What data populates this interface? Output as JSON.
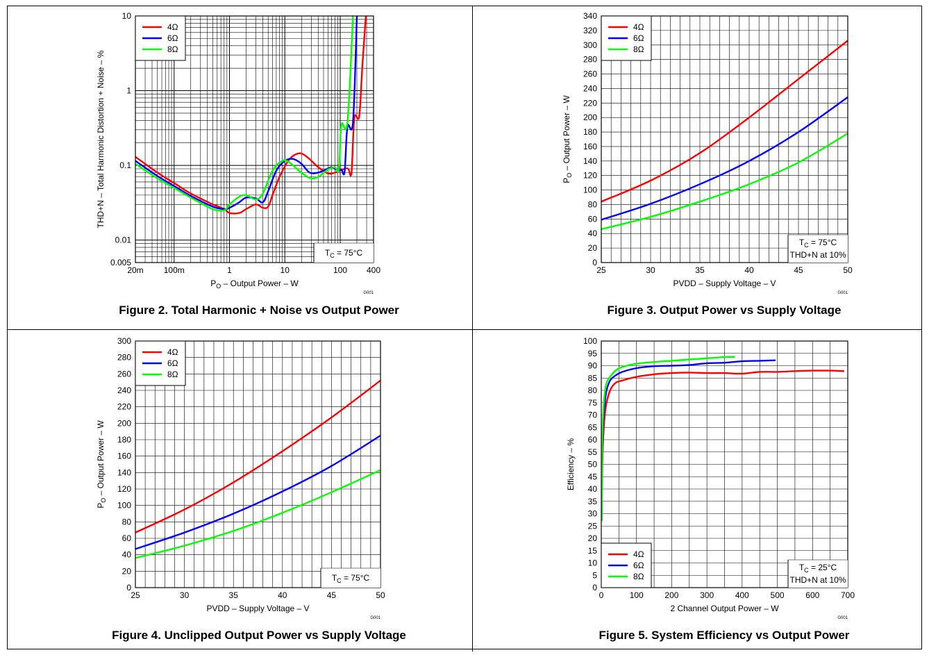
{
  "chart_data": [
    {
      "type": "line",
      "title": "Figure 2. Total Harmonic + Noise vs Output Power",
      "xlabel_main": "P",
      "xlabel_sub": "O",
      "xlabel_rest": " – Output Power – W",
      "ylabel": "THD+N – Total Harmonic Distortion + Noise – %",
      "x_scale": "log",
      "y_scale": "log",
      "xlim": [
        0.02,
        400
      ],
      "ylim": [
        0.005,
        10
      ],
      "x_ticks": [
        {
          "value": 0.02,
          "label": "20m"
        },
        {
          "value": 0.1,
          "label": "100m"
        },
        {
          "value": 1,
          "label": "1"
        },
        {
          "value": 10,
          "label": "10"
        },
        {
          "value": 100,
          "label": "100"
        },
        {
          "value": 400,
          "label": "400"
        }
      ],
      "y_ticks": [
        {
          "value": 0.005,
          "label": "0.005"
        },
        {
          "value": 0.01,
          "label": "0.01"
        },
        {
          "value": 0.1,
          "label": "0.1"
        },
        {
          "value": 1,
          "label": "1"
        },
        {
          "value": 10,
          "label": "10"
        }
      ],
      "grid": true,
      "legend_position": "top-left",
      "annotation_main": "T",
      "annotation_sub": "C",
      "annotation_rest": " = 75°C",
      "annotation2": "",
      "note": "G001",
      "series": [
        {
          "name": "4Ω",
          "color": "#ff0000",
          "points": [
            [
              0.02,
              0.13
            ],
            [
              0.05,
              0.08
            ],
            [
              0.1,
              0.058
            ],
            [
              0.2,
              0.042
            ],
            [
              0.5,
              0.03
            ],
            [
              0.8,
              0.026
            ],
            [
              1,
              0.023
            ],
            [
              1.5,
              0.023
            ],
            [
              2,
              0.026
            ],
            [
              3,
              0.03
            ],
            [
              4,
              0.027
            ],
            [
              5,
              0.028
            ],
            [
              6,
              0.04
            ],
            [
              8,
              0.07
            ],
            [
              12,
              0.12
            ],
            [
              18,
              0.145
            ],
            [
              25,
              0.13
            ],
            [
              40,
              0.095
            ],
            [
              60,
              0.078
            ],
            [
              80,
              0.08
            ],
            [
              120,
              0.09
            ],
            [
              140,
              0.09
            ],
            [
              160,
              0.08
            ],
            [
              180,
              0.43
            ],
            [
              220,
              0.45
            ],
            [
              250,
              2
            ],
            [
              290,
              10
            ]
          ]
        },
        {
          "name": "6Ω",
          "color": "#0000ff",
          "points": [
            [
              0.02,
              0.115
            ],
            [
              0.05,
              0.072
            ],
            [
              0.1,
              0.053
            ],
            [
              0.2,
              0.039
            ],
            [
              0.5,
              0.028
            ],
            [
              0.8,
              0.026
            ],
            [
              1,
              0.027
            ],
            [
              1.5,
              0.032
            ],
            [
              2,
              0.037
            ],
            [
              3,
              0.036
            ],
            [
              4,
              0.032
            ],
            [
              5,
              0.045
            ],
            [
              7,
              0.085
            ],
            [
              10,
              0.115
            ],
            [
              14,
              0.122
            ],
            [
              20,
              0.105
            ],
            [
              28,
              0.08
            ],
            [
              40,
              0.08
            ],
            [
              55,
              0.088
            ],
            [
              70,
              0.094
            ],
            [
              90,
              0.086
            ],
            [
              105,
              0.088
            ],
            [
              120,
              0.082
            ],
            [
              135,
              0.33
            ],
            [
              170,
              0.38
            ],
            [
              200,
              10
            ]
          ]
        },
        {
          "name": "8Ω",
          "color": "#00ff00",
          "points": [
            [
              0.02,
              0.105
            ],
            [
              0.05,
              0.067
            ],
            [
              0.1,
              0.05
            ],
            [
              0.2,
              0.037
            ],
            [
              0.5,
              0.026
            ],
            [
              0.8,
              0.025
            ],
            [
              1,
              0.03
            ],
            [
              1.5,
              0.038
            ],
            [
              2,
              0.04
            ],
            [
              3,
              0.035
            ],
            [
              4,
              0.042
            ],
            [
              6,
              0.085
            ],
            [
              9,
              0.115
            ],
            [
              12,
              0.11
            ],
            [
              18,
              0.085
            ],
            [
              28,
              0.068
            ],
            [
              40,
              0.07
            ],
            [
              60,
              0.088
            ],
            [
              80,
              0.094
            ],
            [
              95,
              0.09
            ],
            [
              105,
              0.35
            ],
            [
              135,
              0.38
            ],
            [
              170,
              10
            ]
          ]
        }
      ]
    },
    {
      "type": "line",
      "title": "Figure 3. Output Power vs Supply Voltage",
      "xlabel_main": "PVDD – Supply Voltage – V",
      "xlabel_sub": "",
      "xlabel_rest": "",
      "ylabel_main": "P",
      "ylabel_sub": "O",
      "ylabel_rest": " – Output Power – W",
      "x_scale": "linear",
      "y_scale": "linear",
      "xlim": [
        25,
        50
      ],
      "ylim": [
        0,
        340
      ],
      "x_ticks": [
        25,
        30,
        35,
        40,
        45,
        50
      ],
      "y_ticks": [
        0,
        20,
        40,
        60,
        80,
        100,
        120,
        140,
        160,
        180,
        200,
        220,
        240,
        260,
        280,
        300,
        320,
        340
      ],
      "x_minor": 1,
      "y_minor": 20,
      "grid": true,
      "legend_position": "top-left",
      "annotation_main": "T",
      "annotation_sub": "C",
      "annotation_rest": " = 75°C",
      "annotation2": "THD+N at 10%",
      "note": "G001",
      "series": [
        {
          "name": "4Ω",
          "color": "#ff0000",
          "points": [
            [
              25,
              84
            ],
            [
              30,
              113
            ],
            [
              35,
              151
            ],
            [
              40,
              200
            ],
            [
              45,
              253
            ],
            [
              50,
              306
            ]
          ]
        },
        {
          "name": "6Ω",
          "color": "#0000ff",
          "points": [
            [
              25,
              59
            ],
            [
              30,
              81
            ],
            [
              35,
              108
            ],
            [
              40,
              140
            ],
            [
              45,
              180
            ],
            [
              50,
              228
            ]
          ]
        },
        {
          "name": "8Ω",
          "color": "#00ff00",
          "points": [
            [
              25,
              46
            ],
            [
              30,
              63
            ],
            [
              35,
              84
            ],
            [
              40,
              108
            ],
            [
              45,
              138
            ],
            [
              50,
              178
            ]
          ]
        }
      ]
    },
    {
      "type": "line",
      "title": "Figure 4. Unclipped Output Power vs Supply Voltage",
      "xlabel_main": "PVDD – Supply Voltage – V",
      "xlabel_sub": "",
      "xlabel_rest": "",
      "ylabel_main": "P",
      "ylabel_sub": "O",
      "ylabel_rest": " – Output Power – W",
      "x_scale": "linear",
      "y_scale": "linear",
      "xlim": [
        25,
        50
      ],
      "ylim": [
        0,
        300
      ],
      "x_ticks": [
        25,
        30,
        35,
        40,
        45,
        50
      ],
      "y_ticks": [
        0,
        20,
        40,
        60,
        80,
        100,
        120,
        140,
        160,
        180,
        200,
        220,
        240,
        260,
        280,
        300
      ],
      "x_minor": 1,
      "y_minor": 20,
      "grid": true,
      "legend_position": "top-left",
      "annotation_main": "T",
      "annotation_sub": "C",
      "annotation_rest": " = 75°C",
      "annotation2": "",
      "note": "G001",
      "series": [
        {
          "name": "4Ω",
          "color": "#ff0000",
          "points": [
            [
              25,
              67
            ],
            [
              30,
              95
            ],
            [
              35,
              128
            ],
            [
              40,
              166
            ],
            [
              45,
              207
            ],
            [
              50,
              252
            ]
          ]
        },
        {
          "name": "6Ω",
          "color": "#0000ff",
          "points": [
            [
              25,
              47
            ],
            [
              30,
              67
            ],
            [
              35,
              90
            ],
            [
              40,
              117
            ],
            [
              45,
              148
            ],
            [
              50,
              185
            ]
          ]
        },
        {
          "name": "8Ω",
          "color": "#00ff00",
          "points": [
            [
              25,
              36
            ],
            [
              30,
              51
            ],
            [
              35,
              69
            ],
            [
              40,
              91
            ],
            [
              45,
              116
            ],
            [
              50,
              143
            ]
          ]
        }
      ]
    },
    {
      "type": "line",
      "title": "Figure 5. System Efficiency vs Output Power",
      "xlabel_main": "2 Channel Output Power – W",
      "xlabel_sub": "",
      "xlabel_rest": "",
      "ylabel_main": "Efficiency – %",
      "ylabel_sub": "",
      "ylabel_rest": "",
      "x_scale": "linear",
      "y_scale": "linear",
      "xlim": [
        0,
        700
      ],
      "ylim": [
        0,
        100
      ],
      "x_ticks": [
        0,
        100,
        200,
        300,
        400,
        500,
        600,
        700
      ],
      "y_ticks": [
        0,
        5,
        10,
        15,
        20,
        25,
        30,
        35,
        40,
        45,
        50,
        55,
        60,
        65,
        70,
        75,
        80,
        85,
        90,
        95,
        100
      ],
      "x_minor": 50,
      "y_minor": 5,
      "grid": true,
      "legend_position": "bottom-left",
      "annotation_main": "T",
      "annotation_sub": "C",
      "annotation_rest": " = 25°C",
      "annotation2": "THD+N at 10%",
      "note": "G001",
      "series": [
        {
          "name": "4Ω",
          "color": "#ff0000",
          "points": [
            [
              1,
              30
            ],
            [
              3,
              50
            ],
            [
              6,
              62
            ],
            [
              10,
              70
            ],
            [
              15,
              75
            ],
            [
              25,
              80
            ],
            [
              40,
              83
            ],
            [
              60,
              84
            ],
            [
              100,
              85.5
            ],
            [
              150,
              86.5
            ],
            [
              200,
              87
            ],
            [
              250,
              87.2
            ],
            [
              300,
              87
            ],
            [
              350,
              87
            ],
            [
              400,
              86.8
            ],
            [
              450,
              87.5
            ],
            [
              500,
              87.5
            ],
            [
              550,
              87.8
            ],
            [
              600,
              88
            ],
            [
              650,
              88
            ],
            [
              690,
              87.8
            ]
          ]
        },
        {
          "name": "6Ω",
          "color": "#0000ff",
          "points": [
            [
              1,
              27
            ],
            [
              3,
              55
            ],
            [
              6,
              68
            ],
            [
              10,
              75
            ],
            [
              15,
              80
            ],
            [
              25,
              84
            ],
            [
              40,
              86
            ],
            [
              60,
              87.5
            ],
            [
              100,
              89
            ],
            [
              150,
              89.8
            ],
            [
              200,
              90
            ],
            [
              250,
              90.3
            ],
            [
              300,
              91
            ],
            [
              350,
              91.2
            ],
            [
              400,
              91.8
            ],
            [
              450,
              92
            ],
            [
              495,
              92.2
            ]
          ]
        },
        {
          "name": "8Ω",
          "color": "#00ff00",
          "points": [
            [
              1,
              27
            ],
            [
              3,
              60
            ],
            [
              6,
              72
            ],
            [
              10,
              79
            ],
            [
              15,
              83
            ],
            [
              25,
              85.5
            ],
            [
              40,
              88
            ],
            [
              60,
              89.5
            ],
            [
              100,
              90.8
            ],
            [
              150,
              91.5
            ],
            [
              200,
              92
            ],
            [
              250,
              92.5
            ],
            [
              300,
              93
            ],
            [
              350,
              93.5
            ],
            [
              380,
              93.6
            ]
          ]
        }
      ]
    }
  ]
}
